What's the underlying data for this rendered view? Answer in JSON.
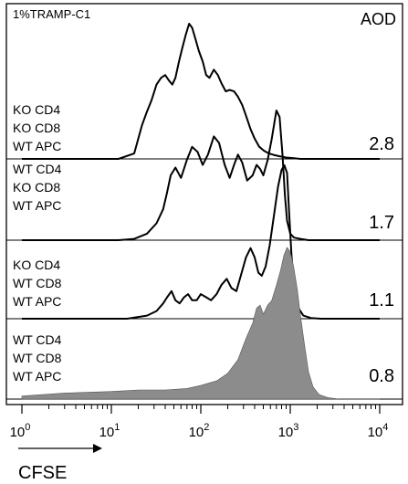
{
  "chart_data": {
    "type": "area",
    "title": "1%TRAMP-C1",
    "column_header": "AOD",
    "xlabel": "CFSE",
    "x_scale": "log",
    "xlim": [
      1,
      10000
    ],
    "x_ticks": [
      {
        "base": "10",
        "exp": "0",
        "value": 1
      },
      {
        "base": "10",
        "exp": "1",
        "value": 10
      },
      {
        "base": "10",
        "exp": "2",
        "value": 100
      },
      {
        "base": "10",
        "exp": "3",
        "value": 1000
      },
      {
        "base": "10",
        "exp": "4",
        "value": 10000
      }
    ],
    "ylim": [
      0,
      1
    ],
    "grid": false,
    "panels": [
      {
        "label_lines": [
          "KO CD4",
          "KO CD8",
          "WT APC"
        ],
        "aod": "2.8",
        "filled": false,
        "x": [
          1,
          12,
          18,
          22,
          25,
          28,
          32,
          36,
          40,
          44,
          48,
          52,
          57,
          62,
          68,
          74,
          80,
          86,
          95,
          105,
          115,
          125,
          140,
          155,
          170,
          190,
          210,
          235,
          260,
          290,
          320,
          360,
          400,
          450,
          510,
          580,
          650,
          750,
          900,
          1100,
          1300,
          2000,
          10000
        ],
        "y": [
          0.0,
          0.0,
          0.04,
          0.25,
          0.35,
          0.43,
          0.55,
          0.6,
          0.62,
          0.58,
          0.55,
          0.6,
          0.72,
          0.82,
          0.92,
          1.0,
          0.97,
          0.9,
          0.8,
          0.72,
          0.62,
          0.6,
          0.66,
          0.62,
          0.56,
          0.5,
          0.51,
          0.5,
          0.46,
          0.4,
          0.32,
          0.22,
          0.15,
          0.09,
          0.06,
          0.04,
          0.03,
          0.02,
          0.01,
          0.005,
          0.0,
          0.0,
          0.0
        ]
      },
      {
        "label_lines": [
          "WT CD4",
          "KO CD8",
          "WT APC"
        ],
        "aod": "1.7",
        "filled": false,
        "x": [
          1,
          12,
          18,
          25,
          32,
          38,
          42,
          46,
          52,
          60,
          70,
          80,
          92,
          105,
          120,
          140,
          160,
          185,
          210,
          235,
          260,
          290,
          330,
          380,
          420,
          460,
          500,
          560,
          620,
          700,
          760,
          820,
          870,
          920,
          1000,
          1100,
          1300,
          1600,
          2000,
          10000
        ],
        "y": [
          0.0,
          0.0,
          0.01,
          0.05,
          0.13,
          0.24,
          0.37,
          0.5,
          0.56,
          0.48,
          0.62,
          0.72,
          0.68,
          0.58,
          0.66,
          0.8,
          0.75,
          0.58,
          0.48,
          0.58,
          0.66,
          0.6,
          0.46,
          0.5,
          0.58,
          0.55,
          0.5,
          0.62,
          0.78,
          1.0,
          0.95,
          0.65,
          0.35,
          0.15,
          0.05,
          0.02,
          0.01,
          0.0,
          0.0,
          0.0
        ]
      },
      {
        "label_lines": [
          "KO CD4",
          "WT CD8",
          "WT APC"
        ],
        "aod": "1.1",
        "filled": false,
        "x": [
          1,
          15,
          25,
          32,
          38,
          42,
          47,
          52,
          58,
          65,
          72,
          80,
          90,
          100,
          115,
          130,
          150,
          170,
          195,
          220,
          250,
          280,
          320,
          360,
          400,
          440,
          480,
          530,
          590,
          660,
          730,
          800,
          860,
          920,
          970,
          1030,
          1100,
          1200,
          1400,
          1700,
          2200,
          10000
        ],
        "y": [
          0.0,
          0.0,
          0.02,
          0.05,
          0.1,
          0.14,
          0.18,
          0.12,
          0.1,
          0.14,
          0.16,
          0.12,
          0.12,
          0.16,
          0.14,
          0.12,
          0.16,
          0.22,
          0.26,
          0.2,
          0.18,
          0.28,
          0.4,
          0.46,
          0.4,
          0.3,
          0.28,
          0.34,
          0.48,
          0.68,
          0.86,
          0.97,
          1.0,
          0.95,
          0.7,
          0.42,
          0.2,
          0.08,
          0.02,
          0.005,
          0.0,
          0.0
        ]
      },
      {
        "label_lines": [
          "WT CD4",
          "WT CD8",
          "WT APC"
        ],
        "aod": "0.8",
        "filled": true,
        "x": [
          1,
          3,
          10,
          20,
          40,
          70,
          100,
          150,
          200,
          260,
          320,
          380,
          420,
          460,
          500,
          560,
          620,
          700,
          780,
          850,
          920,
          980,
          1030,
          1100,
          1200,
          1300,
          1450,
          1600,
          1800,
          2100,
          2600,
          3500,
          10000
        ],
        "y": [
          0.02,
          0.04,
          0.05,
          0.06,
          0.06,
          0.07,
          0.09,
          0.12,
          0.17,
          0.26,
          0.4,
          0.5,
          0.6,
          0.62,
          0.56,
          0.62,
          0.65,
          0.75,
          0.85,
          0.95,
          1.0,
          0.98,
          0.94,
          0.86,
          0.72,
          0.55,
          0.35,
          0.18,
          0.08,
          0.03,
          0.01,
          0.0,
          0.0
        ]
      }
    ],
    "colors": {
      "line": "#000000",
      "fill": "#8c8c8c"
    }
  }
}
